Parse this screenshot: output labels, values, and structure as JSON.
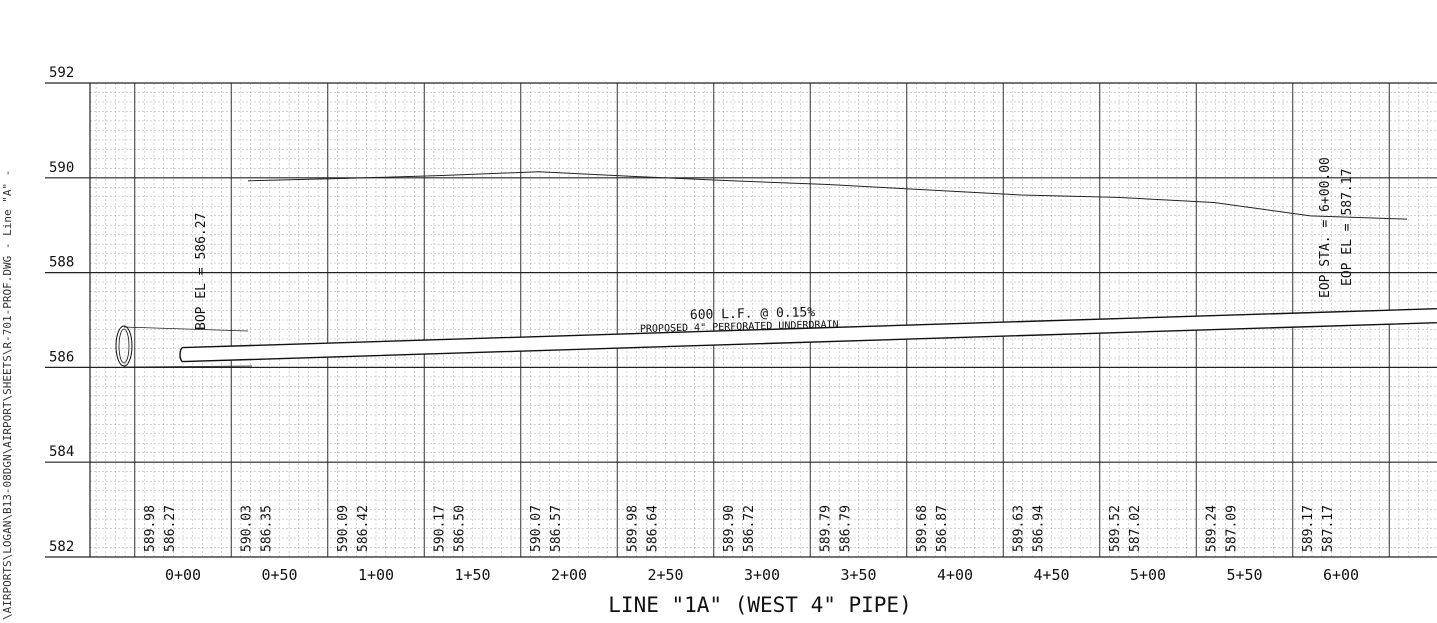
{
  "side_text": "\\AIRPORTS\\LOGAN\\B13-08DGN\\AIRPORT\\SHEETS\\R-701-PROF.DWG  -  Line \"A\" -",
  "elevations": [
    "592",
    "590",
    "588",
    "586",
    "584",
    "582"
  ],
  "stations": [
    "0+00",
    "0+50",
    "1+00",
    "1+50",
    "2+00",
    "2+50",
    "3+00",
    "3+50",
    "4+00",
    "4+50",
    "5+00",
    "5+50",
    "6+00"
  ],
  "existing_elevations": [
    "589.98",
    "590.03",
    "590.09",
    "590.17",
    "590.07",
    "589.98",
    "589.90",
    "589.79",
    "589.68",
    "589.63",
    "589.52",
    "589.24",
    "589.17"
  ],
  "proposed_elevations": [
    "586.27",
    "586.35",
    "586.42",
    "586.50",
    "586.57",
    "586.64",
    "586.72",
    "586.79",
    "586.87",
    "586.94",
    "587.02",
    "587.09",
    "587.17"
  ],
  "chart_data": {
    "type": "line",
    "title": "LINE \"1A\" (WEST 4\" PIPE)",
    "xlabel": "",
    "ylabel": "",
    "ylim": [
      582,
      592
    ],
    "grid": true,
    "x": [
      0,
      50,
      100,
      150,
      200,
      250,
      300,
      350,
      400,
      450,
      500,
      550,
      600
    ],
    "series": [
      {
        "values": [
          589.98,
          590.03,
          590.09,
          590.17,
          590.07,
          589.98,
          589.9,
          589.79,
          589.68,
          589.63,
          589.52,
          589.24,
          589.17
        ]
      },
      {
        "values": [
          586.27,
          586.35,
          586.42,
          586.5,
          586.57,
          586.64,
          586.72,
          586.79,
          586.87,
          586.94,
          587.02,
          587.09,
          587.17
        ]
      }
    ],
    "annotations": {
      "bop": "BOP EL = 586.27",
      "eop_sta": "EOP STA. = 6+00.00",
      "eop_el": "EOP EL = 587.17",
      "slope": "600 L.F. @ 0.15%",
      "pipe": "PROPOSED 4\" PERFORATED UNDERDRAIN"
    }
  }
}
